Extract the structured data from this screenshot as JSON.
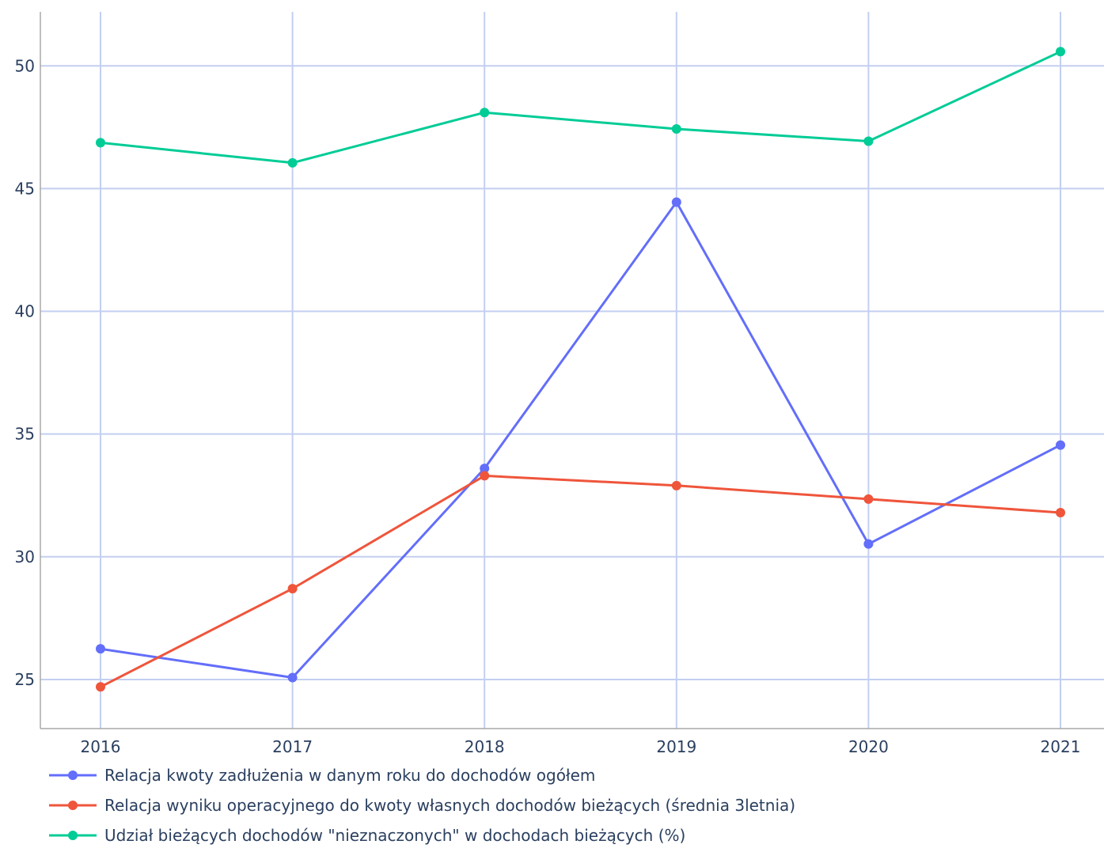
{
  "chart_data": {
    "type": "line",
    "title": "",
    "xlabel": "",
    "ylabel": "",
    "x": [
      "2016",
      "2017",
      "2018",
      "2019",
      "2020",
      "2021"
    ],
    "ylim": [
      23,
      52.2
    ],
    "yticks": [
      25,
      30,
      35,
      40,
      45,
      50
    ],
    "grid": true,
    "legend_position": "bottom-left",
    "series": [
      {
        "name": "Relacja kwoty zadłużenia w danym roku do dochodów ogółem",
        "color": "#636efa",
        "values": [
          26.25,
          25.08,
          33.6,
          44.45,
          30.52,
          34.55
        ]
      },
      {
        "name": "Relacja wyniku operacyjnego do kwoty własnych dochodów bieżących (średnia 3letnia)",
        "color": "#ef553b",
        "values": [
          24.7,
          28.7,
          33.3,
          32.9,
          32.35,
          31.8
        ]
      },
      {
        "name": "Udział bieżących dochodów \"nieznaczonych\" w dochodach bieżących (%)",
        "color": "#00cc96",
        "values": [
          46.87,
          46.05,
          48.1,
          47.43,
          46.93,
          50.58
        ]
      }
    ]
  }
}
